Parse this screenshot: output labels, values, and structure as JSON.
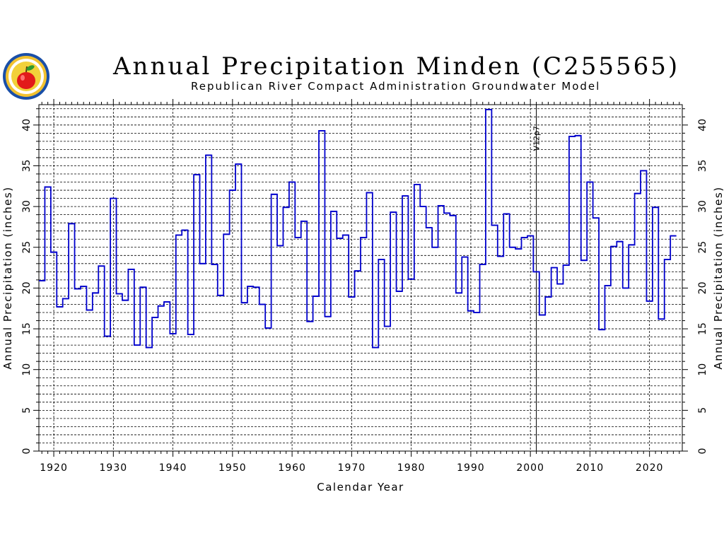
{
  "header": {
    "title": "Annual Precipitation Minden (C255565)",
    "subtitle": "Republican River Compact Administration Groundwater Model"
  },
  "logo": {
    "icon": "apple-seal-icon"
  },
  "chart_data": {
    "type": "line",
    "style": "step",
    "title": "Annual Precipitation Minden (C255565)",
    "subtitle": "Republican River Compact Administration Groundwater Model",
    "xlabel": "Calendar Year",
    "ylabel": "Annual Precipitation  (inches)",
    "ylabel_right": "Annual Precipitation  (inches)",
    "xlim": [
      1917.5,
      2025.5
    ],
    "ylim": [
      0,
      42.5
    ],
    "x_ticks": [
      1920,
      1930,
      1940,
      1950,
      1960,
      1970,
      1980,
      1990,
      2000,
      2010,
      2020
    ],
    "y_ticks": [
      0,
      5,
      10,
      15,
      20,
      25,
      30,
      35,
      40
    ],
    "grid": true,
    "line_color": "#0000cc",
    "annotation": {
      "x": 2001,
      "label": "V12p7"
    },
    "series": [
      {
        "x": [
          1918,
          1919,
          1920,
          1921,
          1922,
          1923,
          1924,
          1925,
          1926,
          1927,
          1928,
          1929,
          1930,
          1931,
          1932,
          1933,
          1934,
          1935,
          1936,
          1937,
          1938,
          1939,
          1940,
          1941,
          1942,
          1943,
          1944,
          1945,
          1946,
          1947,
          1948,
          1949,
          1950,
          1951,
          1952,
          1953,
          1954,
          1955,
          1956,
          1957,
          1958,
          1959,
          1960,
          1961,
          1962,
          1963,
          1964,
          1965,
          1966,
          1967,
          1968,
          1969,
          1970,
          1971,
          1972,
          1973,
          1974,
          1975,
          1976,
          1977,
          1978,
          1979,
          1980,
          1981,
          1982,
          1983,
          1984,
          1985,
          1986,
          1987,
          1988,
          1989,
          1990,
          1991,
          1992,
          1993,
          1994,
          1995,
          1996,
          1997,
          1998,
          1999,
          2000,
          2001,
          2002,
          2003,
          2004,
          2005,
          2006,
          2007,
          2008,
          2009,
          2010,
          2011,
          2012,
          2013,
          2014,
          2015,
          2016,
          2017,
          2018,
          2019,
          2020,
          2021,
          2022,
          2023,
          2024
        ],
        "values": [
          20.9,
          32.4,
          24.4,
          17.7,
          18.7,
          27.9,
          19.9,
          20.2,
          17.3,
          19.4,
          22.7,
          14.1,
          31.0,
          19.3,
          18.5,
          22.3,
          13.0,
          20.1,
          12.7,
          16.4,
          17.8,
          18.3,
          14.4,
          26.5,
          27.1,
          14.3,
          33.9,
          23.0,
          36.3,
          22.9,
          19.1,
          26.6,
          32.0,
          35.2,
          18.2,
          20.2,
          20.1,
          18.0,
          15.1,
          31.5,
          25.2,
          29.9,
          33.0,
          26.2,
          28.2,
          15.9,
          19.0,
          39.3,
          16.5,
          29.4,
          26.1,
          26.5,
          18.9,
          22.1,
          26.2,
          31.7,
          12.7,
          23.5,
          15.3,
          29.3,
          19.6,
          31.3,
          21.1,
          32.7,
          30.0,
          27.4,
          25.0,
          30.1,
          29.2,
          28.9,
          19.4,
          23.8,
          17.2,
          17.0,
          22.9,
          41.9,
          27.7,
          23.9,
          29.1,
          25.0,
          24.8,
          26.2,
          26.4,
          22.0,
          16.7,
          18.9,
          22.5,
          20.5,
          22.8,
          38.6,
          38.7,
          23.4,
          33.0,
          28.6,
          14.9,
          20.3,
          25.1,
          25.7,
          20.0,
          25.3,
          31.6,
          34.4,
          18.4,
          29.9,
          16.2,
          23.5,
          26.4
        ]
      }
    ]
  }
}
